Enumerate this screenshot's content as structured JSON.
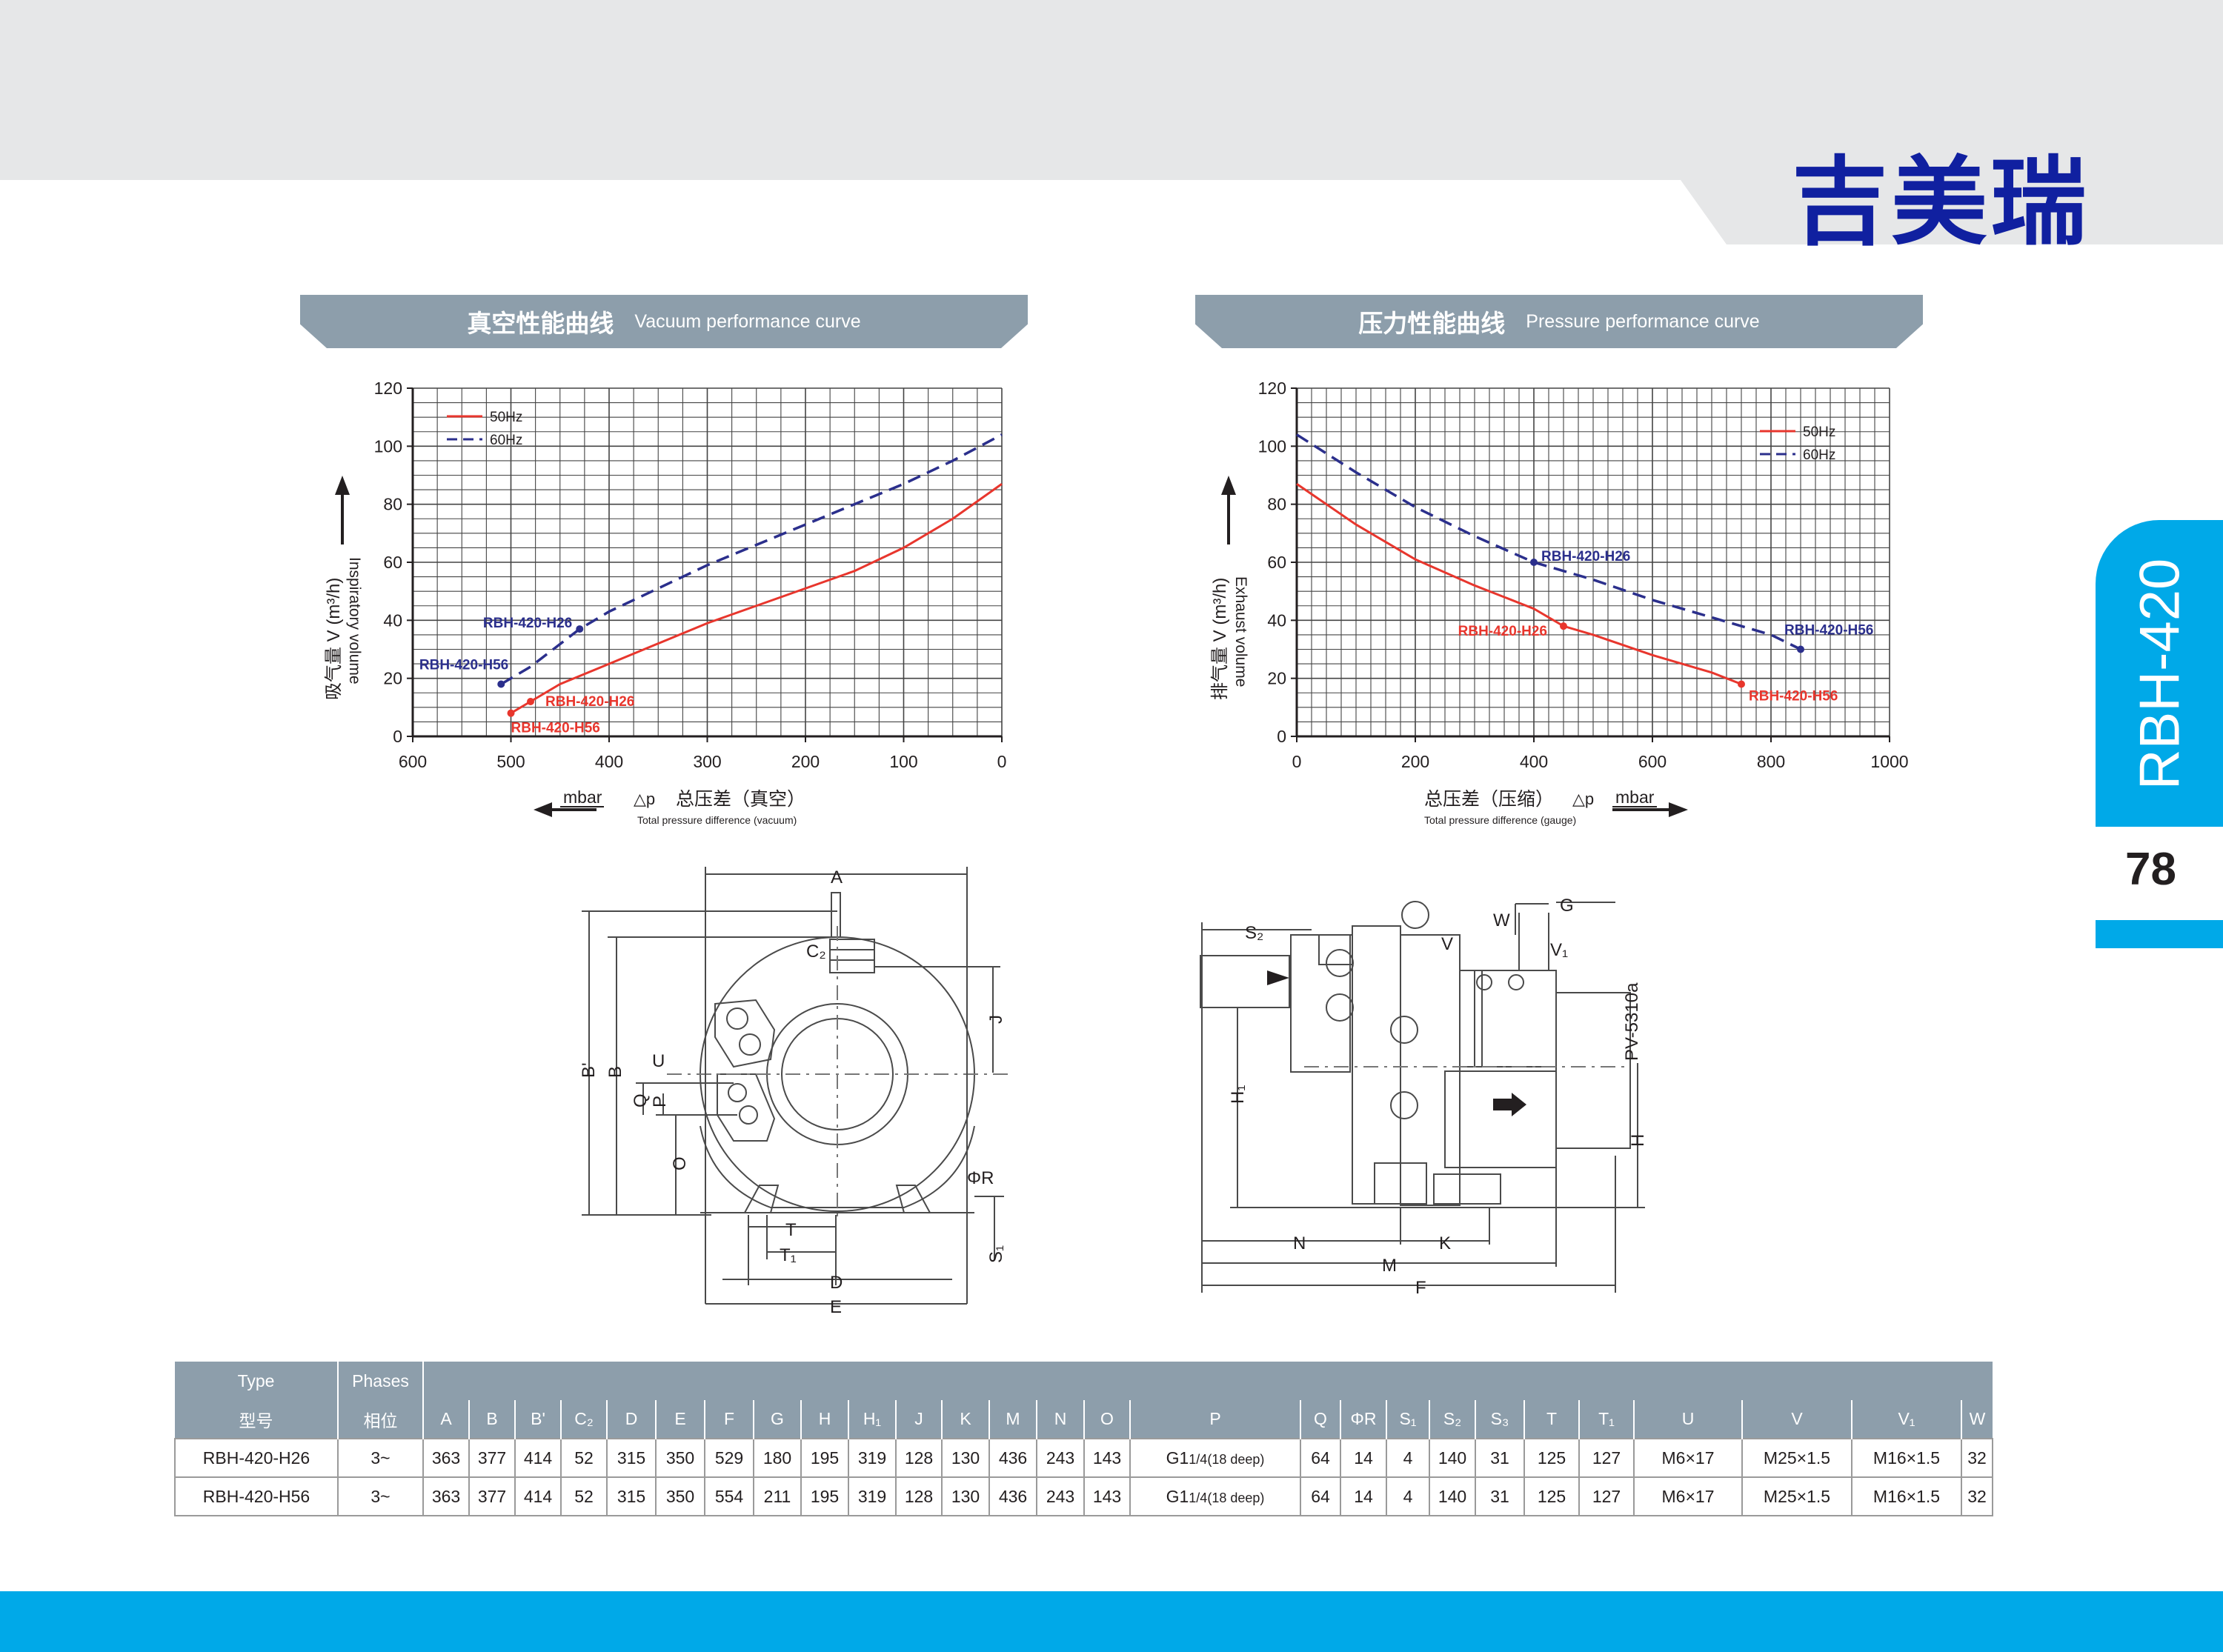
{
  "brand": "吉美瑞",
  "side_tab": {
    "model": "RBH-420",
    "page_number": "78"
  },
  "colors": {
    "brand": "#1020a0",
    "accent": "#00a9e8",
    "header": "#8d9eab",
    "series_50hz": "#e8362d",
    "series_60hz": "#2b2f8c"
  },
  "vacuum_chart": {
    "title_cn": "真空性能曲线",
    "title_en": "Vacuum performance curve",
    "ylabel_cn": "吸气量 V (m³/h)",
    "ylabel_en": "Inspiratory volume",
    "xlabel_cn": "总压差（真空）",
    "xlabel_en": "Total pressure difference (vacuum)",
    "x_unit": "mbar",
    "x_symbol": "△p",
    "legend": {
      "s50": "50Hz",
      "s60": "60Hz"
    },
    "ann": {
      "h26_60": "RBH-420-H26",
      "h56_60": "RBH-420-H56",
      "h26_50": "RBH-420-H26",
      "h56_50": "RBH-420-H56"
    }
  },
  "pressure_chart": {
    "title_cn": "压力性能曲线",
    "title_en": "Pressure performance curve",
    "ylabel_cn": "排气量 V (m³/h)",
    "ylabel_en": "Exhaust volume",
    "xlabel_cn": "总压差（压缩）",
    "xlabel_en": "Total pressure difference (gauge)",
    "x_unit": "mbar",
    "x_symbol": "△p",
    "legend": {
      "s50": "50Hz",
      "s60": "60Hz"
    },
    "ann": {
      "h26_60": "RBH-420-H26",
      "h56_60": "RBH-420-H56",
      "h26_50": "RBH-420-H26",
      "h56_50": "RBH-420-H56"
    }
  },
  "chart_data": [
    {
      "type": "line",
      "title": "真空性能曲线 Vacuum performance curve",
      "xlabel": "总压差（真空） Total pressure difference (vacuum) △p mbar",
      "ylabel": "吸气量 V (m³/h) Inspiratory volume",
      "xlim": [
        600,
        0
      ],
      "ylim": [
        0,
        120
      ],
      "x_ticks": [
        600,
        500,
        400,
        300,
        200,
        100,
        0
      ],
      "y_ticks": [
        0,
        20,
        40,
        60,
        80,
        100,
        120
      ],
      "grid": true,
      "legend_position": "top-left",
      "series": [
        {
          "name": "50Hz",
          "style": "solid",
          "color": "#e8362d",
          "x": [
            500,
            480,
            450,
            400,
            350,
            300,
            250,
            200,
            150,
            100,
            50,
            0
          ],
          "y": [
            8,
            12,
            18,
            25,
            32,
            39,
            45,
            51,
            57,
            65,
            75,
            87
          ]
        },
        {
          "name": "60Hz",
          "style": "dashed",
          "color": "#2b2f8c",
          "x": [
            510,
            480,
            430,
            400,
            350,
            300,
            250,
            200,
            150,
            100,
            50,
            0
          ],
          "y": [
            18,
            24,
            37,
            43,
            51,
            59,
            66,
            73,
            80,
            87,
            95,
            104
          ]
        }
      ],
      "annotations": [
        {
          "text": "RBH-420-H26",
          "x": 430,
          "y": 37,
          "series": "60Hz"
        },
        {
          "text": "RBH-420-H56",
          "x": 510,
          "y": 18,
          "series": "60Hz"
        },
        {
          "text": "RBH-420-H26",
          "x": 480,
          "y": 12,
          "series": "50Hz"
        },
        {
          "text": "RBH-420-H56",
          "x": 500,
          "y": 8,
          "series": "50Hz"
        }
      ]
    },
    {
      "type": "line",
      "title": "压力性能曲线 Pressure performance curve",
      "xlabel": "总压差（压缩） Total pressure difference (gauge) △p mbar",
      "ylabel": "排气量 V (m³/h) Exhaust volume",
      "xlim": [
        0,
        1000
      ],
      "ylim": [
        0,
        120
      ],
      "x_ticks": [
        0,
        200,
        400,
        600,
        800,
        1000
      ],
      "y_ticks": [
        0,
        20,
        40,
        60,
        80,
        100,
        120
      ],
      "grid": true,
      "legend_position": "top-right",
      "series": [
        {
          "name": "50Hz",
          "style": "solid",
          "color": "#e8362d",
          "x": [
            0,
            100,
            200,
            300,
            400,
            450,
            500,
            600,
            700,
            750
          ],
          "y": [
            87,
            73,
            61,
            52,
            44,
            38,
            35,
            28,
            22,
            18
          ]
        },
        {
          "name": "60Hz",
          "style": "dashed",
          "color": "#2b2f8c",
          "x": [
            0,
            100,
            200,
            300,
            400,
            500,
            600,
            700,
            800,
            850
          ],
          "y": [
            104,
            91,
            79,
            69,
            60,
            54,
            47,
            41,
            35,
            30
          ]
        }
      ],
      "annotations": [
        {
          "text": "RBH-420-H26",
          "x": 400,
          "y": 60,
          "series": "60Hz"
        },
        {
          "text": "RBH-420-H56",
          "x": 850,
          "y": 30,
          "series": "60Hz"
        },
        {
          "text": "RBH-420-H26",
          "x": 450,
          "y": 38,
          "series": "50Hz"
        },
        {
          "text": "RBH-420-H56",
          "x": 750,
          "y": 18,
          "series": "50Hz"
        }
      ]
    }
  ],
  "drawings": {
    "front": {
      "A": "A",
      "B": "B",
      "Bp": "B'",
      "C2": "C₂",
      "J": "J",
      "U": "U",
      "Q": "Q",
      "P": "P",
      "O": "O",
      "R": "ΦR",
      "T": "T",
      "T1": "T₁",
      "S1": "S₁",
      "D": "D",
      "E": "E"
    },
    "side": {
      "S2": "S₂",
      "G": "G",
      "W": "W",
      "V": "V",
      "V1": "V₁",
      "code": "PV-5310a",
      "H1": "H₁",
      "H": "H",
      "N": "N",
      "K": "K",
      "M": "M",
      "F": "F"
    }
  },
  "spec_table": {
    "type_label": "Type",
    "phases_label": "Phases",
    "model_label": "型号",
    "phase_cn_label": "相位",
    "columns": [
      "A",
      "B",
      "B'",
      "C₂",
      "D",
      "E",
      "F",
      "G",
      "H",
      "H₁",
      "J",
      "K",
      "M",
      "N",
      "O",
      "P",
      "Q",
      "ΦR",
      "S₁",
      "S₂",
      "S₃",
      "T",
      "T₁",
      "U",
      "V",
      "V₁",
      "W"
    ],
    "rows": [
      {
        "model": "RBH-420-H26",
        "phase": "3~",
        "values": [
          "363",
          "377",
          "414",
          "52",
          "315",
          "350",
          "529",
          "180",
          "195",
          "319",
          "128",
          "130",
          "436",
          "243",
          "143",
          "G1",
          "64",
          "14",
          "4",
          "140",
          "31",
          "125",
          "127",
          "M6×17",
          "M25×1.5",
          "M16×1.5",
          "32"
        ]
      },
      {
        "model": "RBH-420-H56",
        "phase": "3~",
        "values": [
          "363",
          "377",
          "414",
          "52",
          "315",
          "350",
          "554",
          "211",
          "195",
          "319",
          "128",
          "130",
          "436",
          "243",
          "143",
          "G1",
          "64",
          "14",
          "4",
          "140",
          "31",
          "125",
          "127",
          "M6×17",
          "M25×1.5",
          "M16×1.5",
          "32"
        ]
      }
    ],
    "p_suffix": "1/4(18 deep)"
  }
}
